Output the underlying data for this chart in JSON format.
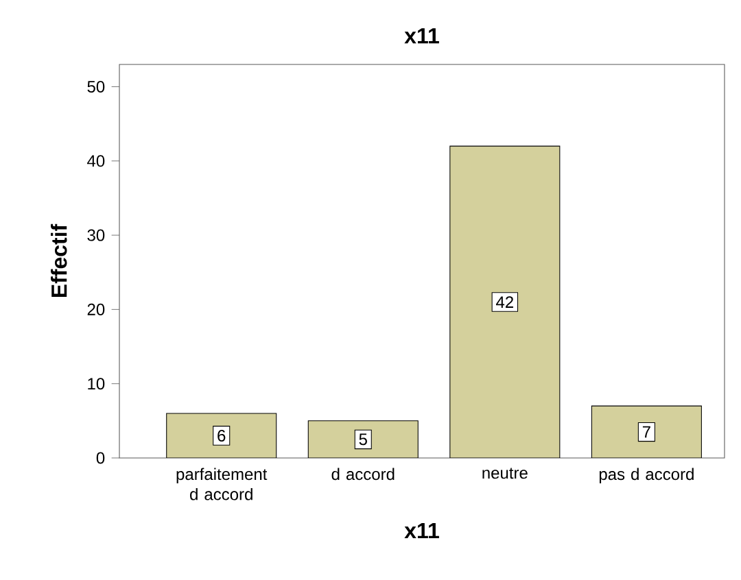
{
  "chart_data": {
    "type": "bar",
    "title": "x11",
    "xlabel": "x11",
    "ylabel": "Effectif",
    "categories": [
      "parfaitement d accord",
      "d accord",
      "neutre",
      "pas d accord"
    ],
    "values": [
      6,
      5,
      42,
      7
    ],
    "color": "#d4d09c",
    "ylim": [
      0,
      53
    ],
    "yticks": [
      0,
      10,
      20,
      30,
      40,
      50
    ],
    "data_labels": true,
    "grid": false
  }
}
